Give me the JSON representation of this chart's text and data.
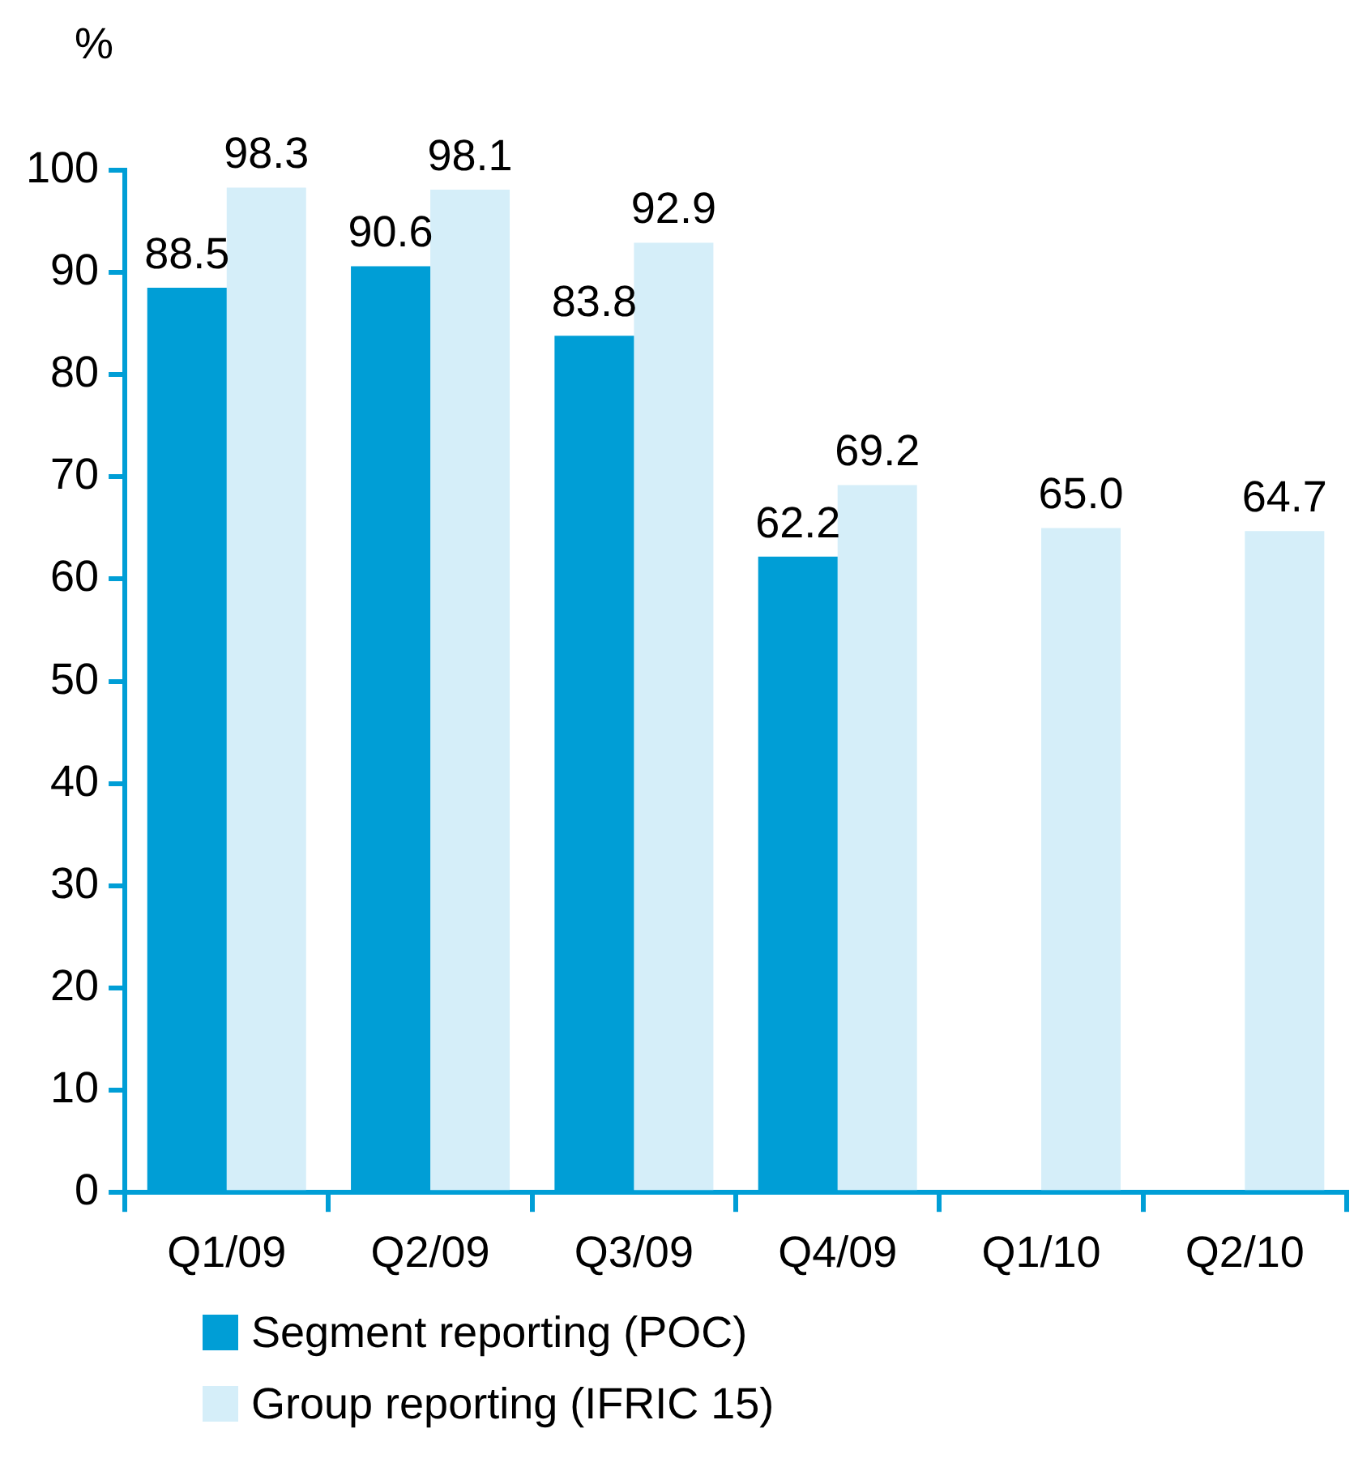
{
  "chart_data": {
    "type": "bar",
    "ylabel": "%",
    "categories": [
      "Q1/09",
      "Q2/09",
      "Q3/09",
      "Q4/09",
      "Q1/10",
      "Q2/10"
    ],
    "series": [
      {
        "name": "Segment reporting (POC)",
        "color": "#009ed6",
        "values": [
          88.5,
          90.6,
          83.8,
          62.2,
          null,
          null
        ],
        "value_labels": [
          "88.5",
          "90.6",
          "83.8",
          "62.2",
          null,
          null
        ]
      },
      {
        "name": "Group reporting (IFRIC 15)",
        "color": "#d5eef9",
        "values": [
          98.3,
          98.1,
          92.9,
          69.2,
          65.0,
          64.7
        ],
        "value_labels": [
          "98.3",
          "98.1",
          "92.9",
          "69.2",
          "65.0",
          "64.7"
        ]
      }
    ],
    "ylim": [
      0,
      100
    ],
    "yticks": [
      0,
      10,
      20,
      30,
      40,
      50,
      60,
      70,
      80,
      90,
      100
    ],
    "grid": false,
    "legend": "bottom"
  }
}
